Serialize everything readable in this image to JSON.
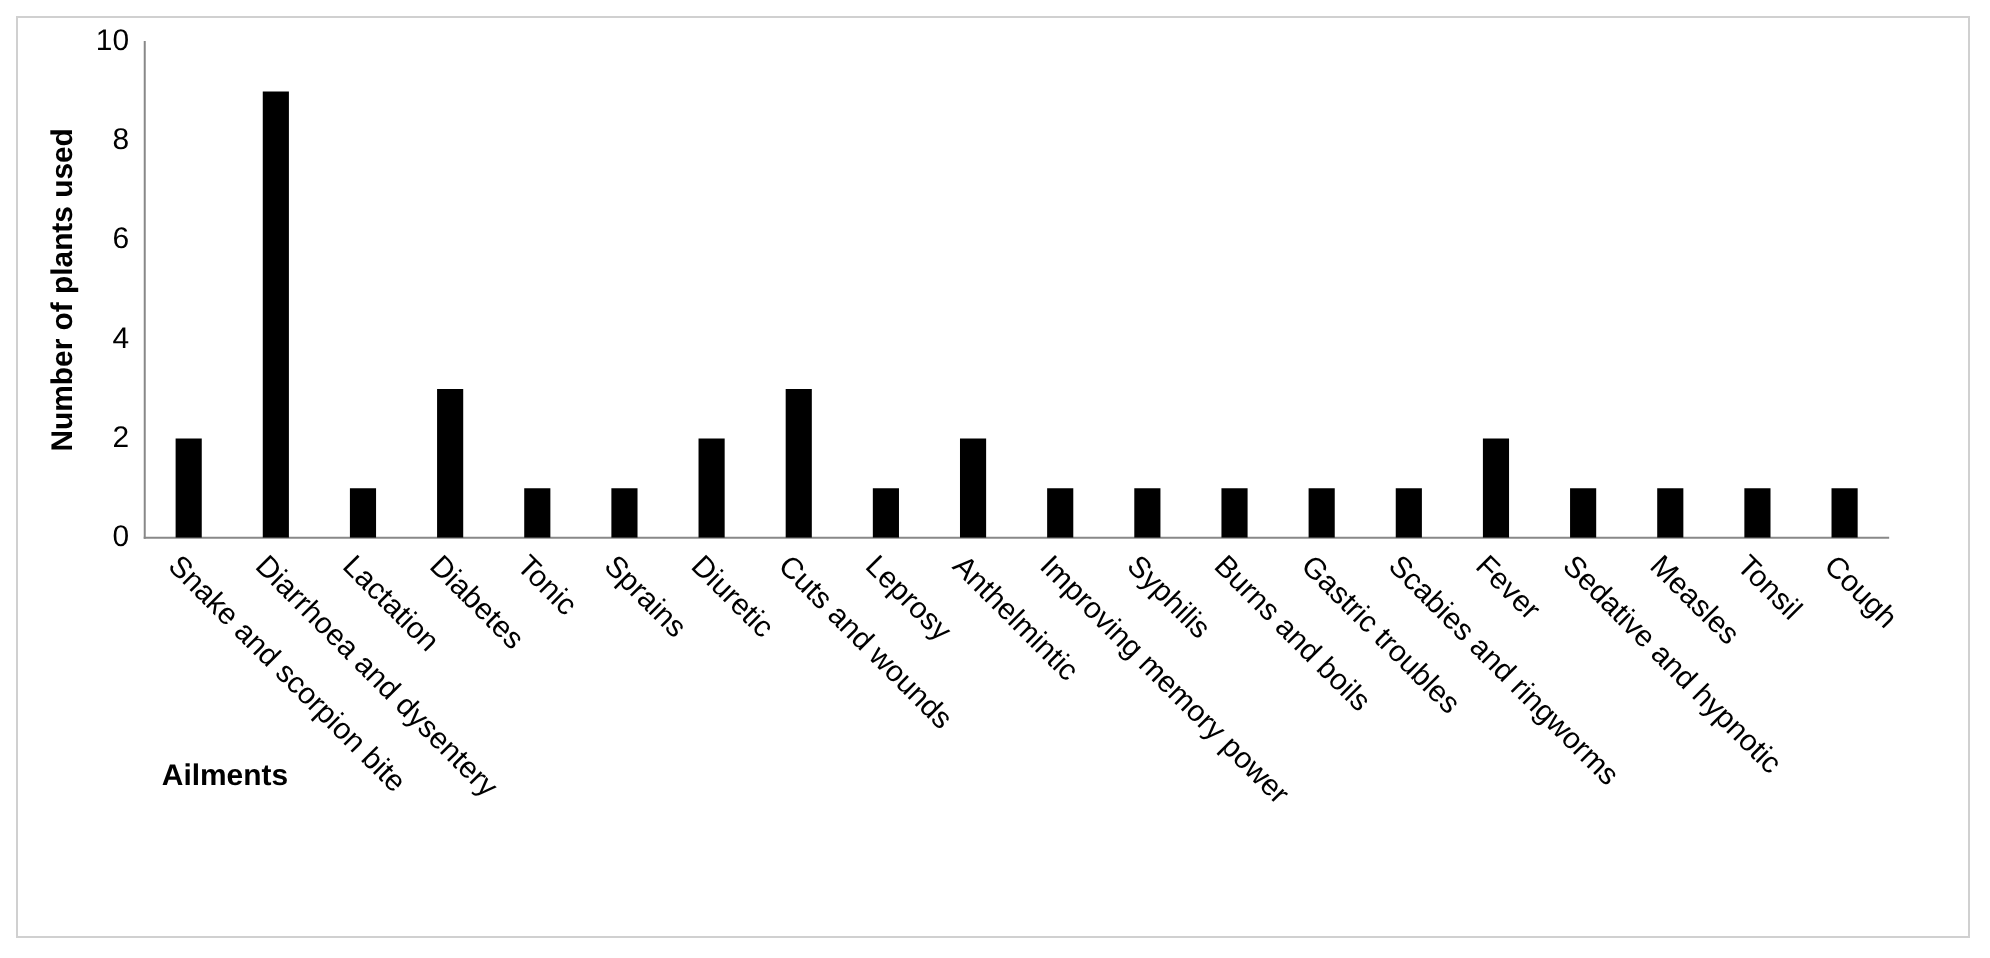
{
  "chart_data": {
    "type": "bar",
    "xlabel": "Ailments",
    "ylabel": "Number of plants used",
    "categories": [
      "Snake and scorpion bite",
      "Diarrhoea and dysentery",
      "Lactation",
      "Diabetes",
      "Tonic",
      "Sprains",
      "Diuretic",
      "Cuts and wounds",
      "Leprosy",
      "Anthelmintic",
      "Improving memory power",
      "Syphilis",
      "Burns and boils",
      "Gastric troubles",
      "Scabies and ringworms",
      "Fever",
      "Sedative and hypnotic",
      "Measles",
      "Tonsil",
      "Cough"
    ],
    "values": [
      2,
      9,
      1,
      3,
      1,
      1,
      2,
      3,
      1,
      2,
      1,
      1,
      1,
      1,
      1,
      2,
      1,
      1,
      1,
      1
    ],
    "color": "#000000",
    "ylim": [
      0,
      10
    ],
    "yticks": [
      0,
      2,
      4,
      6,
      8,
      10
    ],
    "grid": false,
    "legend": false
  }
}
